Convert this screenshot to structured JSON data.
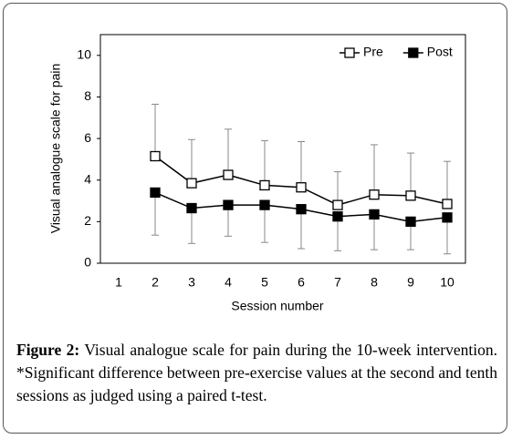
{
  "chart_data": {
    "type": "line",
    "ylabel": "Visual analogue scale for pain",
    "xlabel": "Session number",
    "x": [
      2,
      3,
      4,
      5,
      6,
      7,
      8,
      9,
      10
    ],
    "xlim": [
      0.5,
      10.5
    ],
    "xticks": [
      1,
      2,
      3,
      4,
      5,
      6,
      7,
      8,
      9,
      10
    ],
    "ylim": [
      0,
      11
    ],
    "yticks": [
      0,
      2,
      4,
      6,
      8,
      10
    ],
    "legend": "top-right",
    "series": [
      {
        "name": "Pre",
        "color": "#000000",
        "marker_fill": "#ffffff",
        "error_direction": "up",
        "values": [
          5.15,
          3.85,
          4.25,
          3.75,
          3.65,
          2.8,
          3.3,
          3.25,
          2.85
        ],
        "errors": [
          2.5,
          2.1,
          2.2,
          2.15,
          2.2,
          1.6,
          2.4,
          2.05,
          2.05
        ]
      },
      {
        "name": "Post",
        "color": "#000000",
        "marker_fill": "#000000",
        "error_direction": "down",
        "values": [
          3.4,
          2.65,
          2.8,
          2.8,
          2.6,
          2.25,
          2.35,
          2.0,
          2.2
        ],
        "errors": [
          2.05,
          1.7,
          1.5,
          1.8,
          1.9,
          1.65,
          1.7,
          1.35,
          1.75
        ]
      }
    ],
    "caption_label": "Figure 2:",
    "caption_text": "Visual analogue scale for pain during the 10-week intervention. *Significant difference between pre-exercise values at the second and tenth sessions as judged using a paired t-test."
  }
}
